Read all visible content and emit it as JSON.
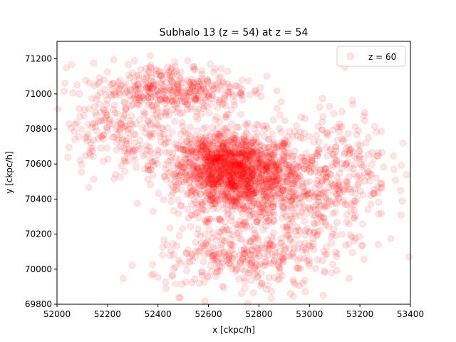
{
  "chart_data": {
    "type": "scatter",
    "title": "Subhalo 13 (z = 54) at z = 54",
    "xlabel": "x [ckpc/h]",
    "ylabel": "y [ckpc/h]",
    "xlim": [
      52000,
      53400
    ],
    "ylim": [
      69800,
      71300
    ],
    "xticks": [
      52000,
      52200,
      52400,
      52600,
      52800,
      53000,
      53200,
      53400
    ],
    "yticks": [
      69800,
      70000,
      70200,
      70400,
      70600,
      70800,
      71000,
      71200
    ],
    "legend": {
      "label": "z = 60",
      "position": "top-right"
    },
    "marker_color": "#ff0000",
    "marker_alpha": 0.1,
    "grid": false,
    "series": [
      {
        "name": "z = 60",
        "point_count": 3000,
        "clusters": [
          {
            "cx": 52720,
            "cy": 70540,
            "sx": 120,
            "sy": 120,
            "weight": 0.42
          },
          {
            "cx": 52600,
            "cy": 70620,
            "sx": 90,
            "sy": 90,
            "weight": 0.1
          },
          {
            "cx": 52450,
            "cy": 71020,
            "sx": 160,
            "sy": 80,
            "weight": 0.14
          },
          {
            "cx": 52900,
            "cy": 70250,
            "sx": 150,
            "sy": 180,
            "weight": 0.1
          },
          {
            "cx": 53100,
            "cy": 70580,
            "sx": 110,
            "sy": 160,
            "weight": 0.1
          },
          {
            "cx": 52250,
            "cy": 70750,
            "sx": 110,
            "sy": 120,
            "weight": 0.06
          },
          {
            "cx": 52700,
            "cy": 70050,
            "sx": 160,
            "sy": 90,
            "weight": 0.08
          }
        ]
      }
    ]
  }
}
